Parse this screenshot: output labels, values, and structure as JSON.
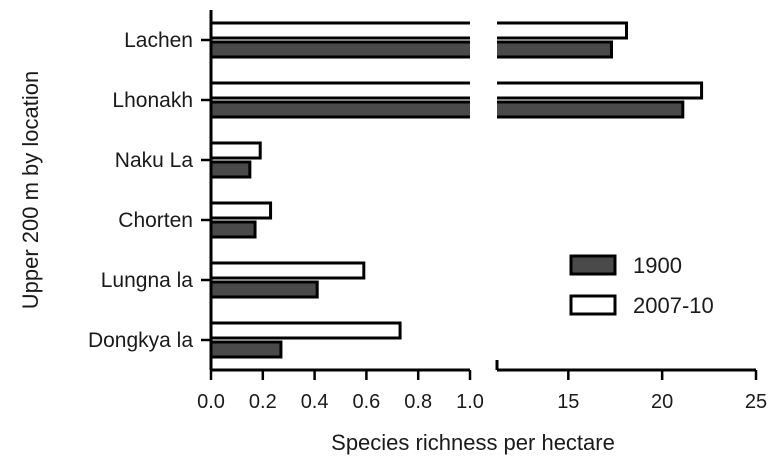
{
  "chart_data": {
    "type": "bar",
    "orientation": "horizontal",
    "broken_x_axis": true,
    "title": "",
    "xlabel": "Species richness per hectare",
    "ylabel": "Upper 200 m by location",
    "categories": [
      "Lachen",
      "Lhonakh",
      "Naku La",
      "Chorten",
      "Lungna la",
      "Dongkya la"
    ],
    "series": [
      {
        "name": "1900",
        "color": "#4a4a4a",
        "values": [
          17.3,
          21.1,
          0.15,
          0.17,
          0.41,
          0.27
        ]
      },
      {
        "name": "2007-10",
        "color": "#ffffff",
        "values": [
          18.1,
          22.1,
          0.19,
          0.23,
          0.59,
          0.73
        ]
      }
    ],
    "x_segments": [
      {
        "range": [
          0,
          1.0
        ],
        "ticks": [
          "0.0",
          "0.2",
          "0.4",
          "0.6",
          "0.8",
          "1.0"
        ]
      },
      {
        "range": [
          11.2,
          25
        ],
        "ticks": [
          "15",
          "20",
          "25"
        ]
      }
    ],
    "legend": {
      "placement": "right",
      "entries": [
        "1900",
        "2007-10"
      ]
    },
    "grid": false
  }
}
